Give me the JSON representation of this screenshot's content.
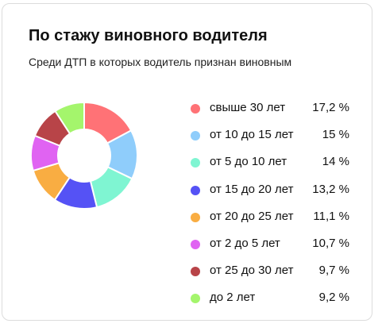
{
  "card": {
    "title": "По стажу виновного водителя",
    "subtitle": "Среди ДТП в которых водитель признан виновным"
  },
  "chart_data": {
    "type": "pie",
    "title": "По стажу виновного водителя",
    "subtitle": "Среди ДТП в которых водитель признан виновным",
    "legend_position": "right",
    "series": [
      {
        "name": "свыше 30 лет",
        "value": 17.2,
        "display": "17,2 %",
        "color": "#ff7276"
      },
      {
        "name": "от 10 до 15 лет",
        "value": 15,
        "display": "15 %",
        "color": "#8fcdfb"
      },
      {
        "name": "от 5 до 10 лет",
        "value": 14,
        "display": "14 %",
        "color": "#7ff5d2"
      },
      {
        "name": "от 15 до 20 лет",
        "value": 13.2,
        "display": "13,2 %",
        "color": "#5552f5"
      },
      {
        "name": "от 20 до 25 лет",
        "value": 11.1,
        "display": "11,1 %",
        "color": "#f9ad42"
      },
      {
        "name": "от 2 до 5 лет",
        "value": 10.7,
        "display": "10,7 %",
        "color": "#e063f2"
      },
      {
        "name": "от 25 до 30 лет",
        "value": 9.7,
        "display": "9,7 %",
        "color": "#b84448"
      },
      {
        "name": "до 2 лет",
        "value": 9.2,
        "display": "9,2 %",
        "color": "#a4f56c"
      }
    ]
  }
}
